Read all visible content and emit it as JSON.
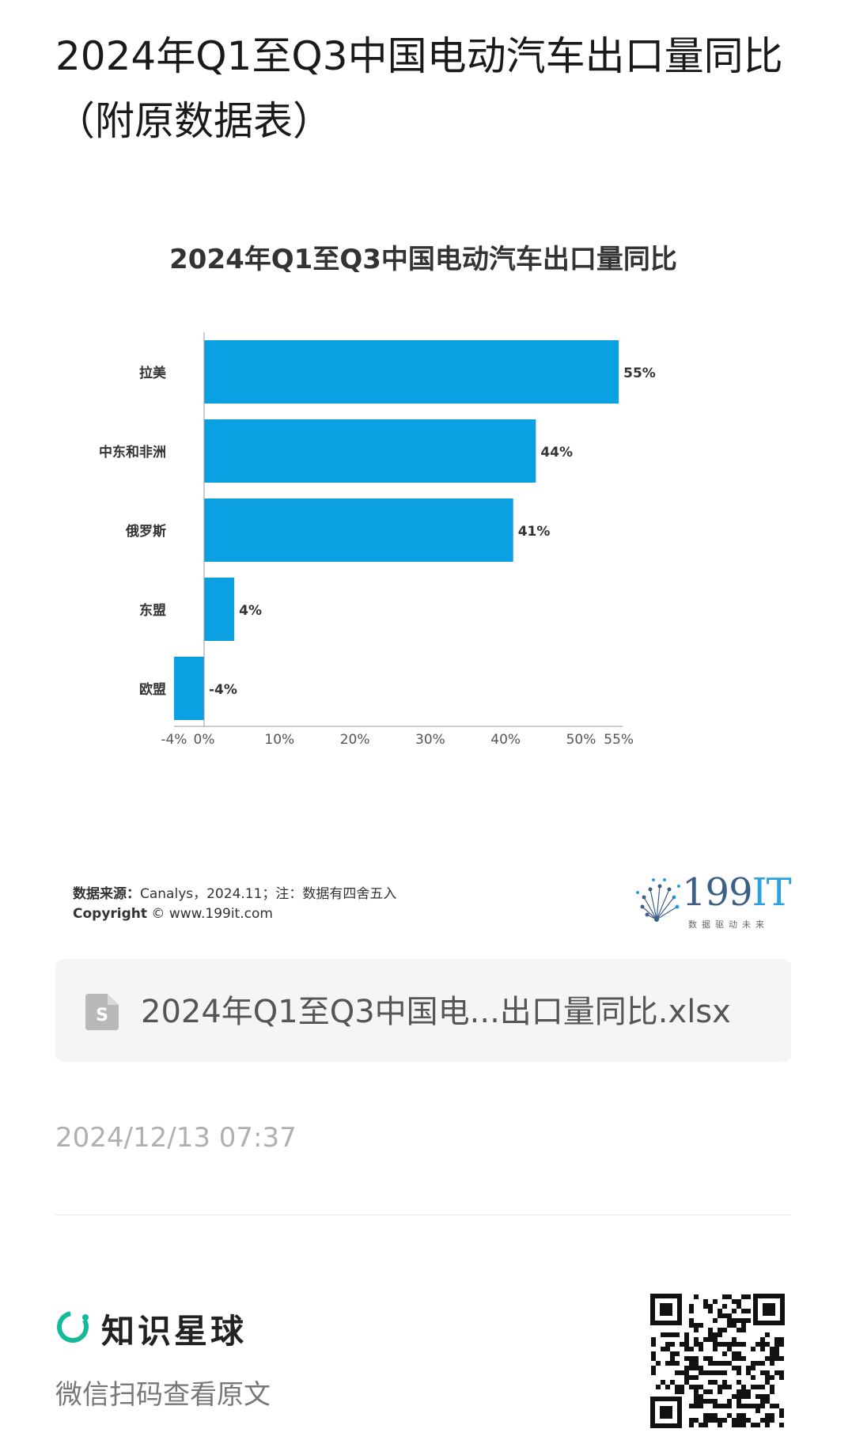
{
  "post": {
    "title": "2024年Q1至Q3中国电动汽车出口量同比（附原数据表）"
  },
  "chart_data": {
    "type": "bar",
    "orientation": "horizontal",
    "title": "2024年Q1至Q3中国电动汽车出口量同比",
    "categories": [
      "拉美",
      "中东和非洲",
      "俄罗斯",
      "东盟",
      "欧盟"
    ],
    "values": [
      55,
      44,
      41,
      4,
      -4
    ],
    "data_labels": [
      "55%",
      "44%",
      "41%",
      "4%",
      "-4%"
    ],
    "unit": "%",
    "xlim": [
      -4,
      55
    ],
    "x_ticks": [
      -4,
      0,
      10,
      20,
      30,
      40,
      50,
      55
    ],
    "x_tick_labels": [
      "-4%",
      "0%",
      "10%",
      "20%",
      "30%",
      "40%",
      "50%",
      "55%"
    ],
    "bar_color": "#0aa0e2",
    "grid": false,
    "legend": "none"
  },
  "source": {
    "label": "数据来源：",
    "text": "Canalys，2024.11；注：数据有四舍五入",
    "copyright_label": "Copyright",
    "copyright_text": "© www.199it.com"
  },
  "logo": {
    "main": "199",
    "accent": "IT",
    "tagline": "数据驱动未来"
  },
  "file": {
    "icon": "spreadsheet-file-icon",
    "name": "2024年Q1至Q3中国电...出口量同比.xlsx"
  },
  "timestamp": "2024/12/13 07:37",
  "footer": {
    "brand_icon": "zsxq-logo-icon",
    "brand_name": "知识星球",
    "subtitle": "微信扫码查看原文",
    "accent_color": "#16b998"
  }
}
